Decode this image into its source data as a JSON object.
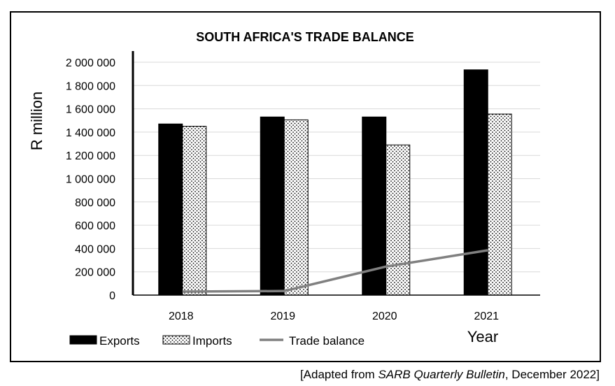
{
  "chart_data": {
    "type": "bar",
    "title": "SOUTH AFRICA'S TRADE BALANCE",
    "xlabel": "Year",
    "ylabel": "R million",
    "categories": [
      "2018",
      "2019",
      "2020",
      "2021"
    ],
    "ylim": [
      0,
      2000000
    ],
    "yticks": [
      0,
      200000,
      400000,
      600000,
      800000,
      1000000,
      1200000,
      1400000,
      1600000,
      1800000,
      2000000
    ],
    "ytick_labels": [
      "0",
      "200 000",
      "400 000",
      "600 000",
      "800 000",
      "1 000 000",
      "1 200 000",
      "1 400 000",
      "1 600 000",
      "1 800 000",
      "2 000 000"
    ],
    "grid": true,
    "legend_position": "bottom-left",
    "series": [
      {
        "name": "Exports",
        "kind": "bar",
        "pattern": "solid-black",
        "values": [
          1470000,
          1530000,
          1530000,
          1935000
        ]
      },
      {
        "name": "Imports",
        "kind": "bar",
        "pattern": "dotted",
        "values": [
          1450000,
          1505000,
          1290000,
          1555000
        ]
      },
      {
        "name": "Trade balance",
        "kind": "line",
        "color": "#808080",
        "values": [
          30000,
          35000,
          245000,
          385000
        ]
      }
    ]
  },
  "source": {
    "prefix": "[Adapted from ",
    "italic": "SARB Quarterly Bulletin",
    "suffix": ", December 2022]"
  }
}
